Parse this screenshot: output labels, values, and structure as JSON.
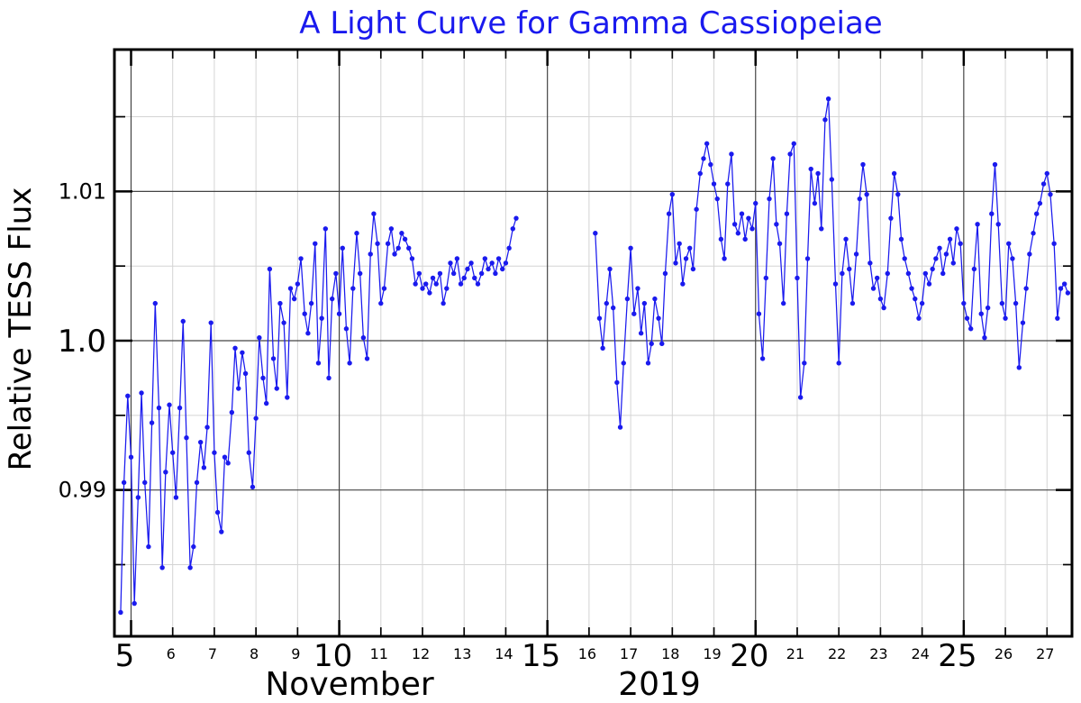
{
  "chart_data": {
    "type": "line",
    "title": "A Light Curve for Gamma Cassiopeiae",
    "xlabel": "November",
    "xlabel_year": "2019",
    "ylabel": "Relative TESS Flux",
    "xlim": [
      4.6,
      27.6
    ],
    "ylim": [
      0.9802,
      1.0195
    ],
    "xticks_major": [
      {
        "value": 5,
        "label": "5"
      },
      {
        "value": 10,
        "label": "10"
      },
      {
        "value": 15,
        "label": "15"
      },
      {
        "value": 20,
        "label": "20"
      },
      {
        "value": 25,
        "label": "25"
      }
    ],
    "xticks_minor": [
      {
        "value": 6,
        "label": "6"
      },
      {
        "value": 7,
        "label": "7"
      },
      {
        "value": 8,
        "label": "8"
      },
      {
        "value": 9,
        "label": "9"
      },
      {
        "value": 11,
        "label": "11"
      },
      {
        "value": 12,
        "label": "12"
      },
      {
        "value": 13,
        "label": "13"
      },
      {
        "value": 14,
        "label": "14"
      },
      {
        "value": 16,
        "label": "16"
      },
      {
        "value": 17,
        "label": "17"
      },
      {
        "value": 18,
        "label": "18"
      },
      {
        "value": 19,
        "label": "19"
      },
      {
        "value": 21,
        "label": "21"
      },
      {
        "value": 22,
        "label": "22"
      },
      {
        "value": 23,
        "label": "23"
      },
      {
        "value": 24,
        "label": "24"
      },
      {
        "value": 26,
        "label": "26"
      },
      {
        "value": 27,
        "label": "27"
      }
    ],
    "yticks_major": [
      {
        "value": 0.99,
        "label": "0.99"
      },
      {
        "value": 1.0,
        "label": "1.0"
      },
      {
        "value": 1.01,
        "label": "1.01"
      }
    ],
    "yticks_minor": [
      0.985,
      0.995,
      1.005,
      1.015
    ],
    "grid": true,
    "line_color": "#1a1aee",
    "grid_major_color": "#444444",
    "grid_minor_color": "#d4d4d4",
    "series": [
      {
        "segments": [
          {
            "x": [
              4.75,
              4.83,
              4.92,
              5.0,
              5.08,
              5.17,
              5.25,
              5.33,
              5.42,
              5.5,
              5.58,
              5.67,
              5.75,
              5.83,
              5.92,
              6.0,
              6.08,
              6.17,
              6.25,
              6.33,
              6.42,
              6.5,
              6.58,
              6.67,
              6.75,
              6.83,
              6.92,
              7.0,
              7.08,
              7.17,
              7.25,
              7.33,
              7.42,
              7.5,
              7.58,
              7.67,
              7.75,
              7.83,
              7.92,
              8.0,
              8.08,
              8.17,
              8.25,
              8.33,
              8.42,
              8.5,
              8.58,
              8.67,
              8.75,
              8.83,
              8.92,
              9.0,
              9.08,
              9.17,
              9.25,
              9.33,
              9.42,
              9.5,
              9.58,
              9.67,
              9.75,
              9.83,
              9.92,
              10.0,
              10.08,
              10.17,
              10.25,
              10.33,
              10.42,
              10.5,
              10.58,
              10.67,
              10.75,
              10.83,
              10.92,
              11.0,
              11.08,
              11.17,
              11.25,
              11.33,
              11.42,
              11.5,
              11.58,
              11.67,
              11.75,
              11.83,
              11.92,
              12.0,
              12.08,
              12.17,
              12.25,
              12.33,
              12.42,
              12.5,
              12.58,
              12.67,
              12.75,
              12.83,
              12.92,
              13.0,
              13.08,
              13.17,
              13.25,
              13.33,
              13.42,
              13.5,
              13.58,
              13.67,
              13.75,
              13.83,
              13.92,
              14.0,
              14.08,
              14.17,
              14.25
            ],
            "y": [
              0.9818,
              0.9905,
              0.9963,
              0.9922,
              0.9824,
              0.9895,
              0.9965,
              0.9905,
              0.9862,
              0.9945,
              1.0025,
              0.9955,
              0.9848,
              0.9912,
              0.9957,
              0.9925,
              0.9895,
              0.9955,
              1.0013,
              0.9935,
              0.9848,
              0.9862,
              0.9905,
              0.9932,
              0.9915,
              0.9942,
              1.0012,
              0.9925,
              0.9885,
              0.9872,
              0.9922,
              0.9918,
              0.9952,
              0.9995,
              0.9968,
              0.9992,
              0.9978,
              0.9925,
              0.9902,
              0.9948,
              1.0002,
              0.9975,
              0.9958,
              1.0048,
              0.9988,
              0.9968,
              1.0025,
              1.0012,
              0.9962,
              1.0035,
              1.0028,
              1.0038,
              1.0055,
              1.0018,
              1.0005,
              1.0025,
              1.0065,
              0.9985,
              1.0015,
              1.0075,
              0.9975,
              1.0028,
              1.0045,
              1.0018,
              1.0062,
              1.0008,
              0.9985,
              1.0035,
              1.0072,
              1.0045,
              1.0002,
              0.9988,
              1.0058,
              1.0085,
              1.0065,
              1.0025,
              1.0035,
              1.0065,
              1.0075,
              1.0058,
              1.0062,
              1.0072,
              1.0068,
              1.0062,
              1.0055,
              1.0038,
              1.0045,
              1.0035,
              1.0038,
              1.0032,
              1.0042,
              1.0038,
              1.0045,
              1.0025,
              1.0035,
              1.0052,
              1.0045,
              1.0055,
              1.0038,
              1.0042,
              1.0048,
              1.0052,
              1.0042,
              1.0038,
              1.0045,
              1.0055,
              1.0048,
              1.0052,
              1.0045,
              1.0055,
              1.0048,
              1.0052,
              1.0062,
              1.0075,
              1.0082
            ]
          },
          {
            "x": [
              16.15,
              16.25,
              16.33,
              16.42,
              16.5,
              16.58,
              16.67,
              16.75,
              16.83,
              16.92,
              17.0,
              17.08,
              17.17,
              17.25,
              17.33,
              17.42,
              17.5,
              17.58,
              17.67,
              17.75,
              17.83,
              17.92,
              18.0,
              18.08,
              18.17,
              18.25,
              18.33,
              18.42,
              18.5,
              18.58,
              18.67,
              18.75,
              18.83,
              18.92,
              19.0,
              19.08,
              19.17,
              19.25,
              19.33,
              19.42,
              19.5,
              19.58,
              19.67,
              19.75,
              19.83,
              19.92,
              20.0,
              20.08,
              20.17,
              20.25,
              20.33,
              20.42,
              20.5,
              20.58,
              20.67,
              20.75,
              20.83,
              20.92,
              21.0,
              21.08,
              21.17,
              21.25,
              21.33,
              21.42,
              21.5,
              21.58,
              21.67,
              21.75,
              21.83,
              21.92,
              22.0,
              22.08,
              22.17,
              22.25,
              22.33,
              22.42,
              22.5,
              22.58,
              22.67,
              22.75,
              22.83,
              22.92,
              23.0,
              23.08,
              23.17,
              23.25,
              23.33,
              23.42,
              23.5,
              23.58,
              23.67,
              23.75,
              23.83,
              23.92,
              24.0,
              24.08,
              24.17,
              24.25,
              24.33,
              24.42,
              24.5,
              24.58,
              24.67,
              24.75,
              24.83,
              24.92,
              25.0,
              25.08,
              25.17,
              25.25,
              25.33,
              25.42,
              25.5,
              25.58,
              25.67,
              25.75,
              25.83,
              25.92,
              26.0,
              26.08,
              26.17,
              26.25,
              26.33,
              26.42,
              26.5,
              26.58,
              26.67,
              26.75,
              26.83,
              26.92,
              27.0,
              27.08,
              27.17,
              27.25,
              27.33,
              27.42,
              27.5
            ],
            "y": [
              1.0072,
              1.0015,
              0.9995,
              1.0025,
              1.0048,
              1.0022,
              0.9972,
              0.9942,
              0.9985,
              1.0028,
              1.0062,
              1.0018,
              1.0035,
              1.0005,
              1.0025,
              0.9985,
              0.9998,
              1.0028,
              1.0015,
              0.9998,
              1.0045,
              1.0085,
              1.0098,
              1.0052,
              1.0065,
              1.0038,
              1.0055,
              1.0062,
              1.0048,
              1.0088,
              1.0112,
              1.0122,
              1.0132,
              1.0118,
              1.0105,
              1.0095,
              1.0068,
              1.0055,
              1.0105,
              1.0125,
              1.0078,
              1.0072,
              1.0085,
              1.0068,
              1.0082,
              1.0075,
              1.0092,
              1.0018,
              0.9988,
              1.0042,
              1.0095,
              1.0122,
              1.0078,
              1.0065,
              1.0025,
              1.0085,
              1.0125,
              1.0132,
              1.0042,
              0.9962,
              0.9985,
              1.0055,
              1.0115,
              1.0092,
              1.0112,
              1.0075,
              1.0148,
              1.0162,
              1.0108,
              1.0038,
              0.9985,
              1.0045,
              1.0068,
              1.0048,
              1.0025,
              1.0058,
              1.0095,
              1.0118,
              1.0098,
              1.0052,
              1.0035,
              1.0042,
              1.0028,
              1.0022,
              1.0045,
              1.0082,
              1.0112,
              1.0098,
              1.0068,
              1.0055,
              1.0045,
              1.0035,
              1.0028,
              1.0015,
              1.0025,
              1.0045,
              1.0038,
              1.0048,
              1.0055,
              1.0062,
              1.0045,
              1.0058,
              1.0068,
              1.0052,
              1.0075,
              1.0065,
              1.0025,
              1.0015,
              1.0008,
              1.0048,
              1.0078,
              1.0018,
              1.0002,
              1.0022,
              1.0085,
              1.0118,
              1.0078,
              1.0025,
              1.0015,
              1.0065,
              1.0055,
              1.0025,
              0.9982,
              1.0012,
              1.0035,
              1.0058,
              1.0072,
              1.0085,
              1.0092,
              1.0105,
              1.0112,
              1.0098,
              1.0065,
              1.0015,
              1.0035,
              1.0038,
              1.0032
            ]
          }
        ]
      }
    ]
  }
}
